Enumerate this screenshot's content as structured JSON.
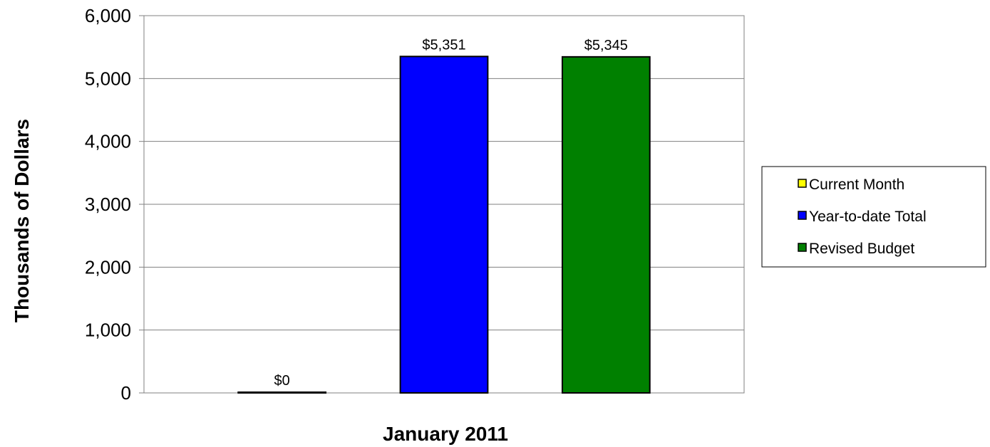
{
  "chart_data": {
    "type": "bar",
    "categories": [
      "January 2011"
    ],
    "series": [
      {
        "name": "Current Month",
        "values": [
          0
        ],
        "color": "#FFFF00",
        "data_label": "$0"
      },
      {
        "name": "Year-to-date Total",
        "values": [
          5351
        ],
        "color": "#0000FF",
        "data_label": "$5,351"
      },
      {
        "name": "Revised Budget",
        "values": [
          5345
        ],
        "color": "#008000",
        "data_label": "$5,345"
      }
    ],
    "title": "",
    "xlabel": "January 2011",
    "ylabel": "Thousands of Dollars",
    "ylim": [
      0,
      6000
    ],
    "yticks": [
      0,
      1000,
      2000,
      3000,
      4000,
      5000,
      6000
    ],
    "ytick_labels": [
      "0",
      "1,000",
      "2,000",
      "3,000",
      "4,000",
      "5,000",
      "6,000"
    ],
    "grid": true,
    "legend_position": "right"
  }
}
